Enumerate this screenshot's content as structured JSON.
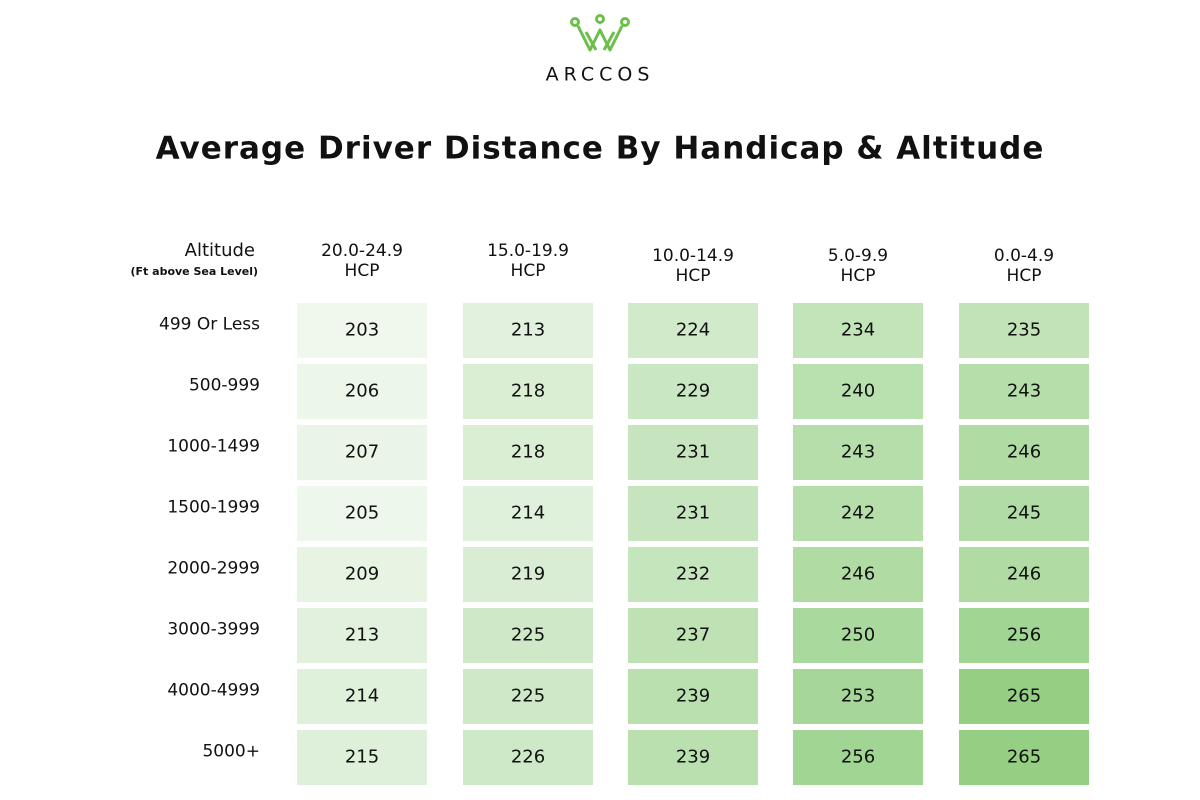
{
  "header": {
    "brand": "ARCCOS",
    "title": "Average Driver Distance By Handicap & Altitude"
  },
  "table": {
    "corner_label": "Altitude",
    "corner_sublabel": "(Ft above Sea Level)",
    "columns": [
      {
        "range": "20.0-24.9",
        "unit": "HCP"
      },
      {
        "range": "15.0-19.9",
        "unit": "HCP"
      },
      {
        "range": "10.0-14.9",
        "unit": "HCP"
      },
      {
        "range": "5.0-9.9",
        "unit": "HCP"
      },
      {
        "range": "0.0-4.9",
        "unit": "HCP"
      }
    ],
    "rows": [
      {
        "label": "499 Or Less",
        "values": [
          203,
          213,
          224,
          234,
          235
        ]
      },
      {
        "label": "500-999",
        "values": [
          206,
          218,
          229,
          240,
          243
        ]
      },
      {
        "label": "1000-1499",
        "values": [
          207,
          218,
          231,
          243,
          246
        ]
      },
      {
        "label": "1500-1999",
        "values": [
          205,
          214,
          231,
          242,
          245
        ]
      },
      {
        "label": "2000-2999",
        "values": [
          209,
          219,
          232,
          246,
          246
        ]
      },
      {
        "label": "3000-3999",
        "values": [
          213,
          225,
          237,
          250,
          256
        ]
      },
      {
        "label": "4000-4999",
        "values": [
          214,
          225,
          239,
          253,
          265
        ]
      },
      {
        "label": "5000+",
        "values": [
          215,
          226,
          239,
          256,
          265
        ]
      }
    ]
  }
}
